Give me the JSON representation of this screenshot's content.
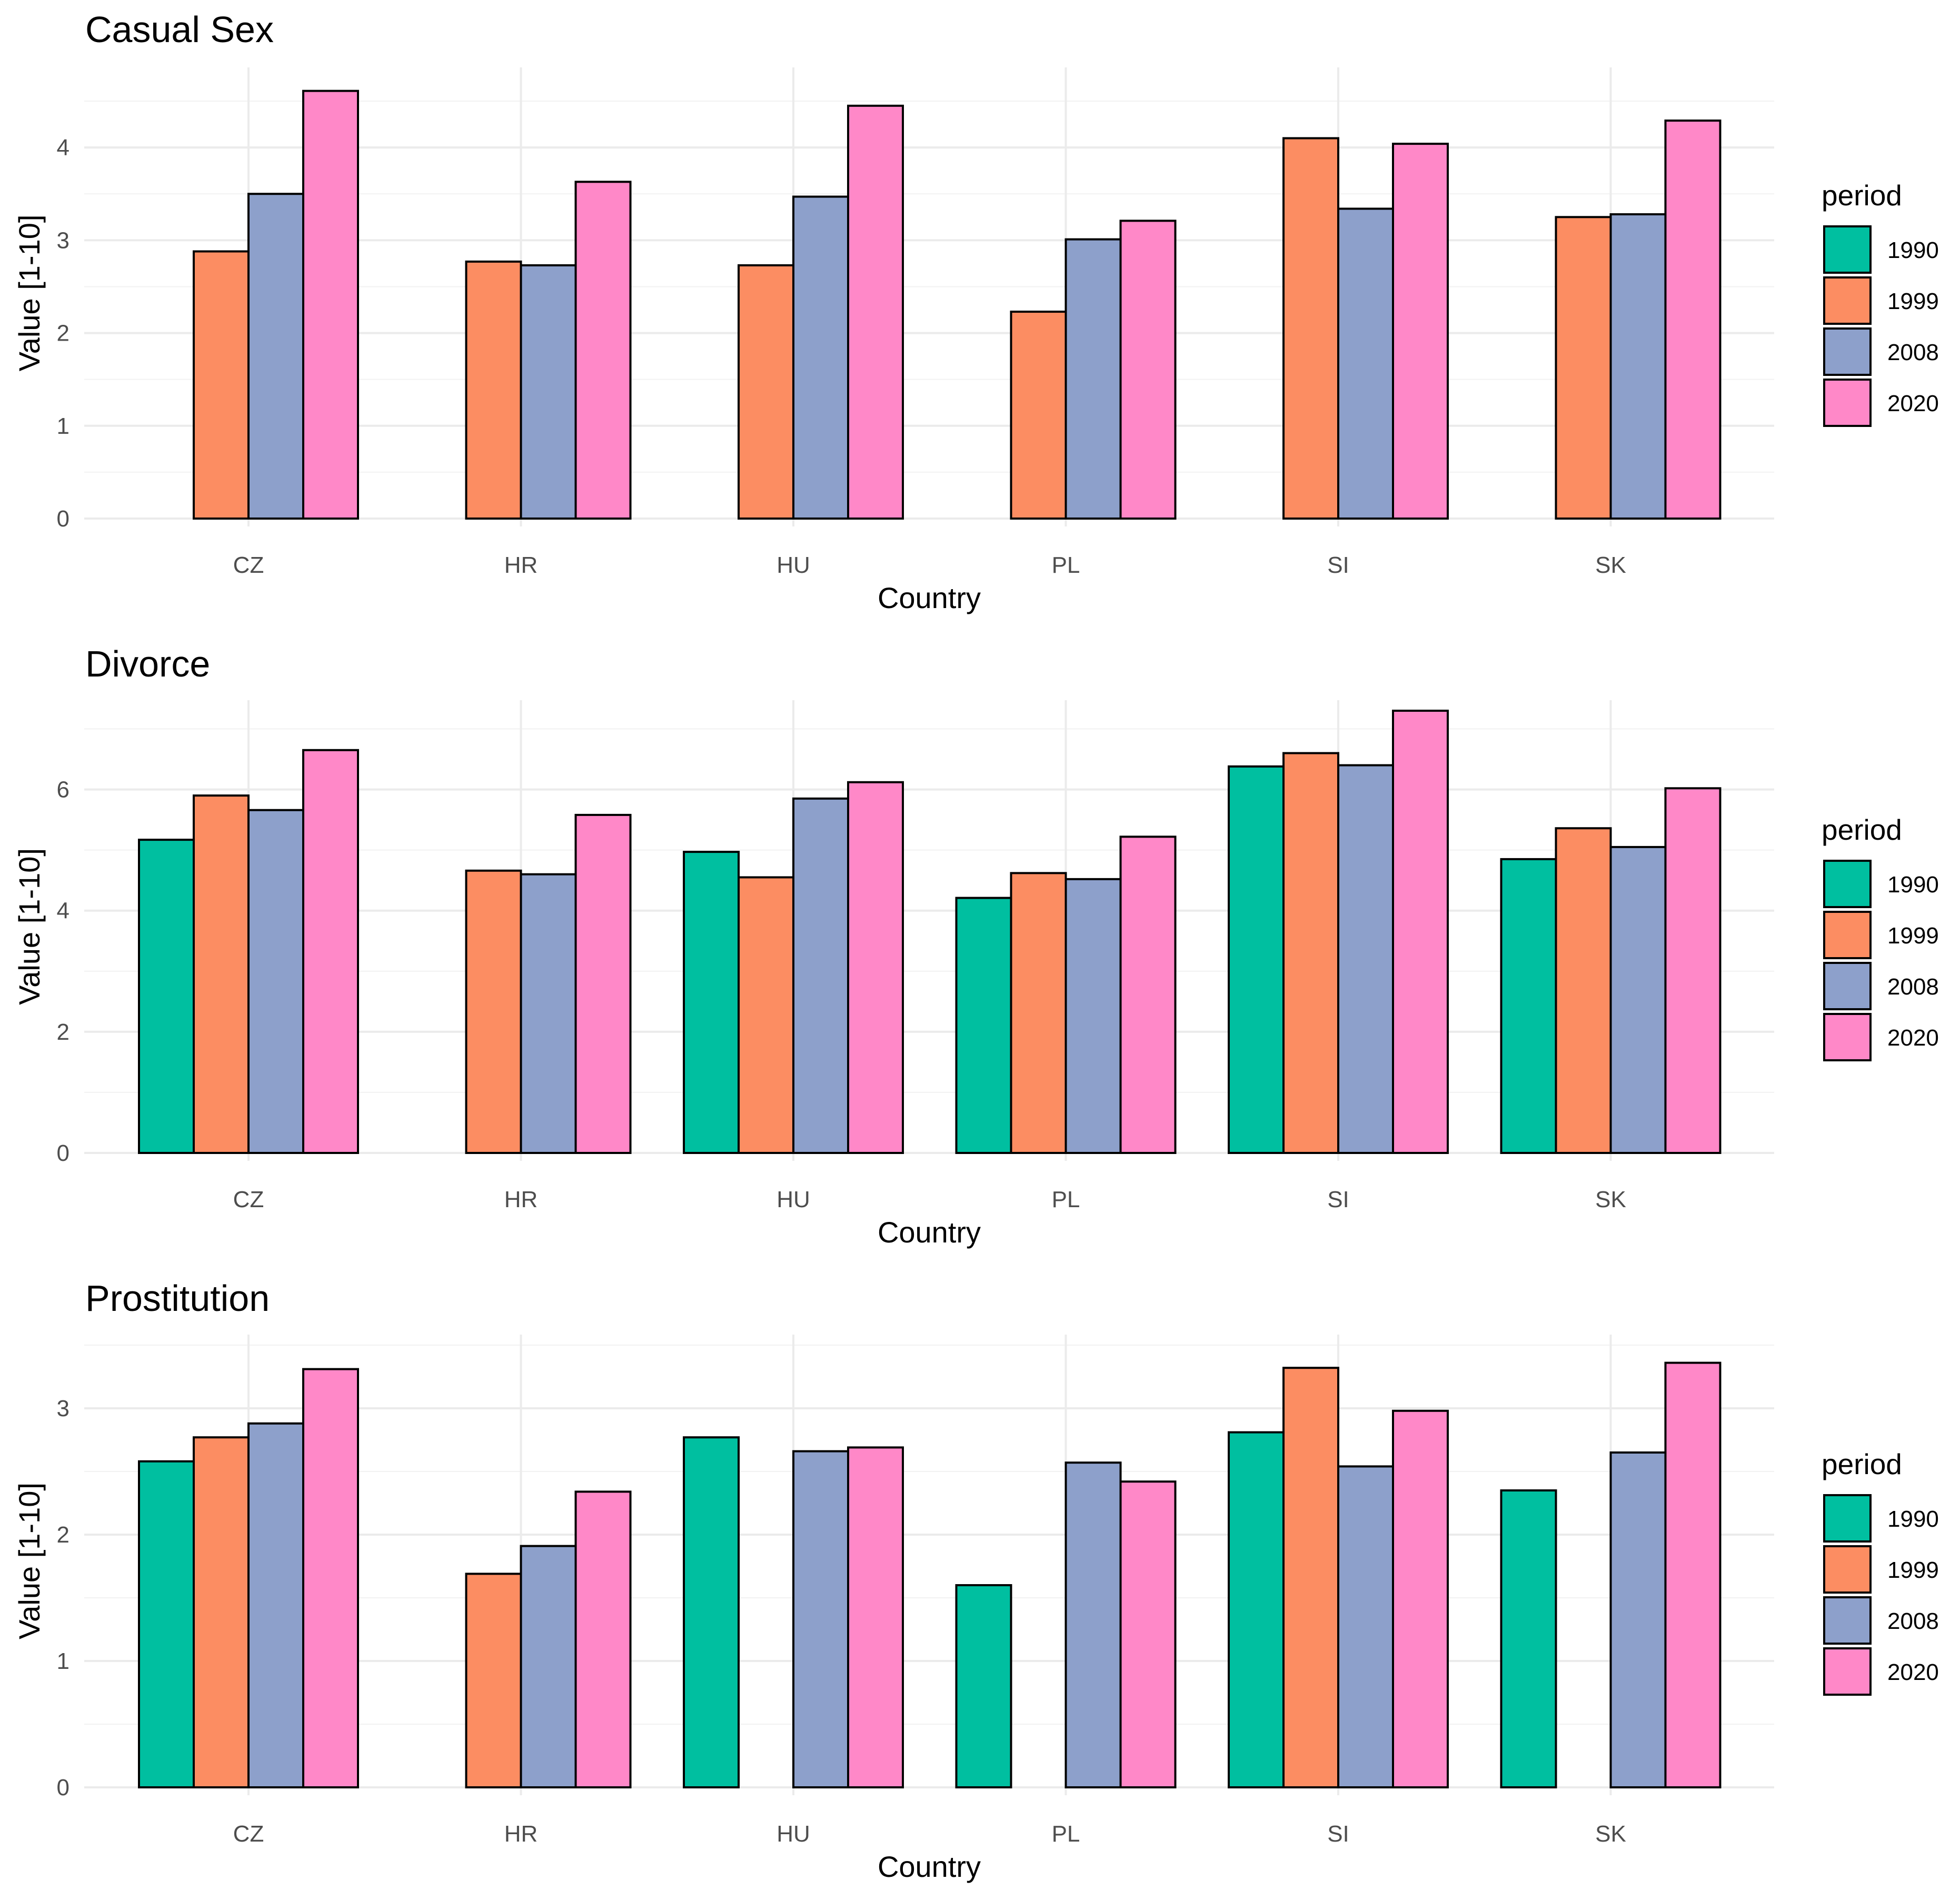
{
  "chart_data": [
    {
      "type": "bar",
      "title": "Casual Sex",
      "xlabel": "Country",
      "ylabel": "Value [1-10]",
      "ylim": [
        0,
        4.75
      ],
      "yticks": [
        0,
        1,
        2,
        3,
        4
      ],
      "grid": true,
      "legend_title": "period",
      "legend_position": "right",
      "categories": [
        "CZ",
        "HR",
        "HU",
        "PL",
        "SI",
        "SK"
      ],
      "series": [
        {
          "name": "1990",
          "color": "#00BFA0",
          "values": [
            null,
            null,
            null,
            null,
            null,
            null
          ]
        },
        {
          "name": "1999",
          "color": "#FC8D62",
          "values": [
            2.88,
            2.77,
            2.73,
            2.23,
            4.1,
            3.25
          ]
        },
        {
          "name": "2008",
          "color": "#8DA0CB",
          "values": [
            3.5,
            2.73,
            3.47,
            3.01,
            3.34,
            3.28
          ]
        },
        {
          "name": "2020",
          "color": "#FF88C8",
          "values": [
            4.61,
            3.63,
            4.45,
            3.21,
            4.04,
            4.29
          ]
        }
      ]
    },
    {
      "type": "bar",
      "title": "Divorce",
      "xlabel": "Country",
      "ylabel": "Value [1-10]",
      "ylim": [
        0,
        7.3
      ],
      "yticks": [
        0,
        2,
        4,
        6
      ],
      "grid": true,
      "legend_title": "period",
      "legend_position": "right",
      "categories": [
        "CZ",
        "HR",
        "HU",
        "PL",
        "SI",
        "SK"
      ],
      "series": [
        {
          "name": "1990",
          "color": "#00BFA0",
          "values": [
            5.17,
            0,
            4.97,
            4.21,
            6.38,
            4.85
          ]
        },
        {
          "name": "1999",
          "color": "#FC8D62",
          "values": [
            5.9,
            4.66,
            4.55,
            4.62,
            6.6,
            5.36
          ]
        },
        {
          "name": "2008",
          "color": "#8DA0CB",
          "values": [
            5.66,
            4.6,
            5.85,
            4.52,
            6.4,
            5.05
          ]
        },
        {
          "name": "2020",
          "color": "#FF88C8",
          "values": [
            6.65,
            5.58,
            6.12,
            5.22,
            7.3,
            6.02
          ]
        }
      ]
    },
    {
      "type": "bar",
      "title": "Prostitution",
      "xlabel": "Country",
      "ylabel": "Value [1-10]",
      "ylim": [
        0,
        3.5
      ],
      "yticks": [
        0,
        1,
        2,
        3
      ],
      "grid": true,
      "legend_title": "period",
      "legend_position": "right",
      "categories": [
        "CZ",
        "HR",
        "HU",
        "PL",
        "SI",
        "SK"
      ],
      "series": [
        {
          "name": "1990",
          "color": "#00BFA0",
          "values": [
            2.58,
            0,
            2.77,
            1.6,
            2.81,
            2.35
          ]
        },
        {
          "name": "1999",
          "color": "#FC8D62",
          "values": [
            2.77,
            1.69,
            null,
            null,
            3.32,
            null
          ]
        },
        {
          "name": "2008",
          "color": "#8DA0CB",
          "values": [
            2.88,
            1.91,
            2.66,
            2.57,
            2.54,
            2.65
          ]
        },
        {
          "name": "2020",
          "color": "#FF88C8",
          "values": [
            3.31,
            2.34,
            2.69,
            2.42,
            2.98,
            3.36
          ]
        }
      ]
    }
  ]
}
